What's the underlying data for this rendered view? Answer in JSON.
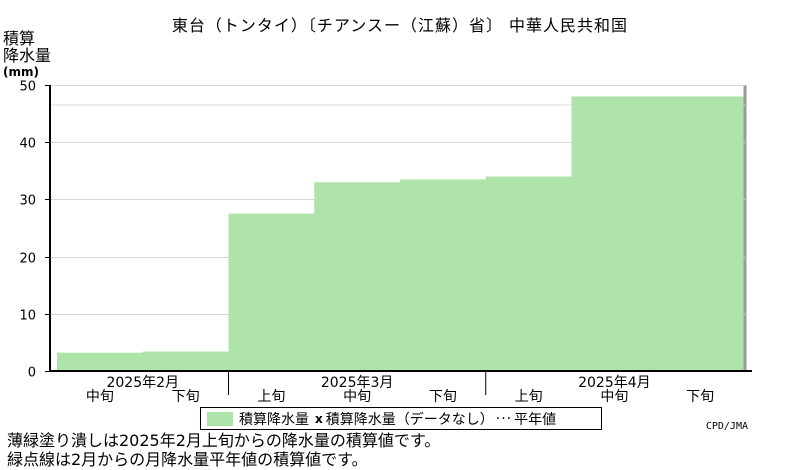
{
  "title": "東台（トンタイ）〔チアンスー（江蘇）省〕 中華人民共和国",
  "y_unit": {
    "line1": "積算",
    "line2": "降水量",
    "line3": "(mm)"
  },
  "legend": {
    "item1": "積算降水量",
    "marker": "x",
    "item2": "積算降水量（データなし）",
    "dots": "···",
    "item3": "平年値"
  },
  "credit": "CPD/JMA",
  "notes": [
    "薄緑塗り潰しは2025年2月上旬からの降水量の積算値です。",
    "緑点線は2月からの月降水量平年値の積算値です。"
  ],
  "colors": {
    "fill": "#aee3aa",
    "grid": "#d8d8d8",
    "axis": "#000000",
    "frame": "#9a9a9a"
  },
  "chart_data": {
    "type": "area",
    "step": true,
    "ylim": [
      0,
      50
    ],
    "yticks": [
      0,
      10,
      20,
      30,
      40,
      50
    ],
    "grid": true,
    "periods": [
      "中旬",
      "下旬",
      "上旬",
      "中旬",
      "下旬",
      "上旬",
      "中旬",
      "下旬"
    ],
    "months": [
      {
        "label": "2025年2月",
        "start": 0,
        "span": 2
      },
      {
        "label": "2025年3月",
        "start": 2,
        "span": 3
      },
      {
        "label": "2025年4月",
        "start": 5,
        "span": 3
      }
    ],
    "series": [
      {
        "values": [
          3.2,
          3.4,
          27.5,
          33.0,
          33.5,
          34.0,
          48.0,
          48.0
        ]
      }
    ]
  }
}
